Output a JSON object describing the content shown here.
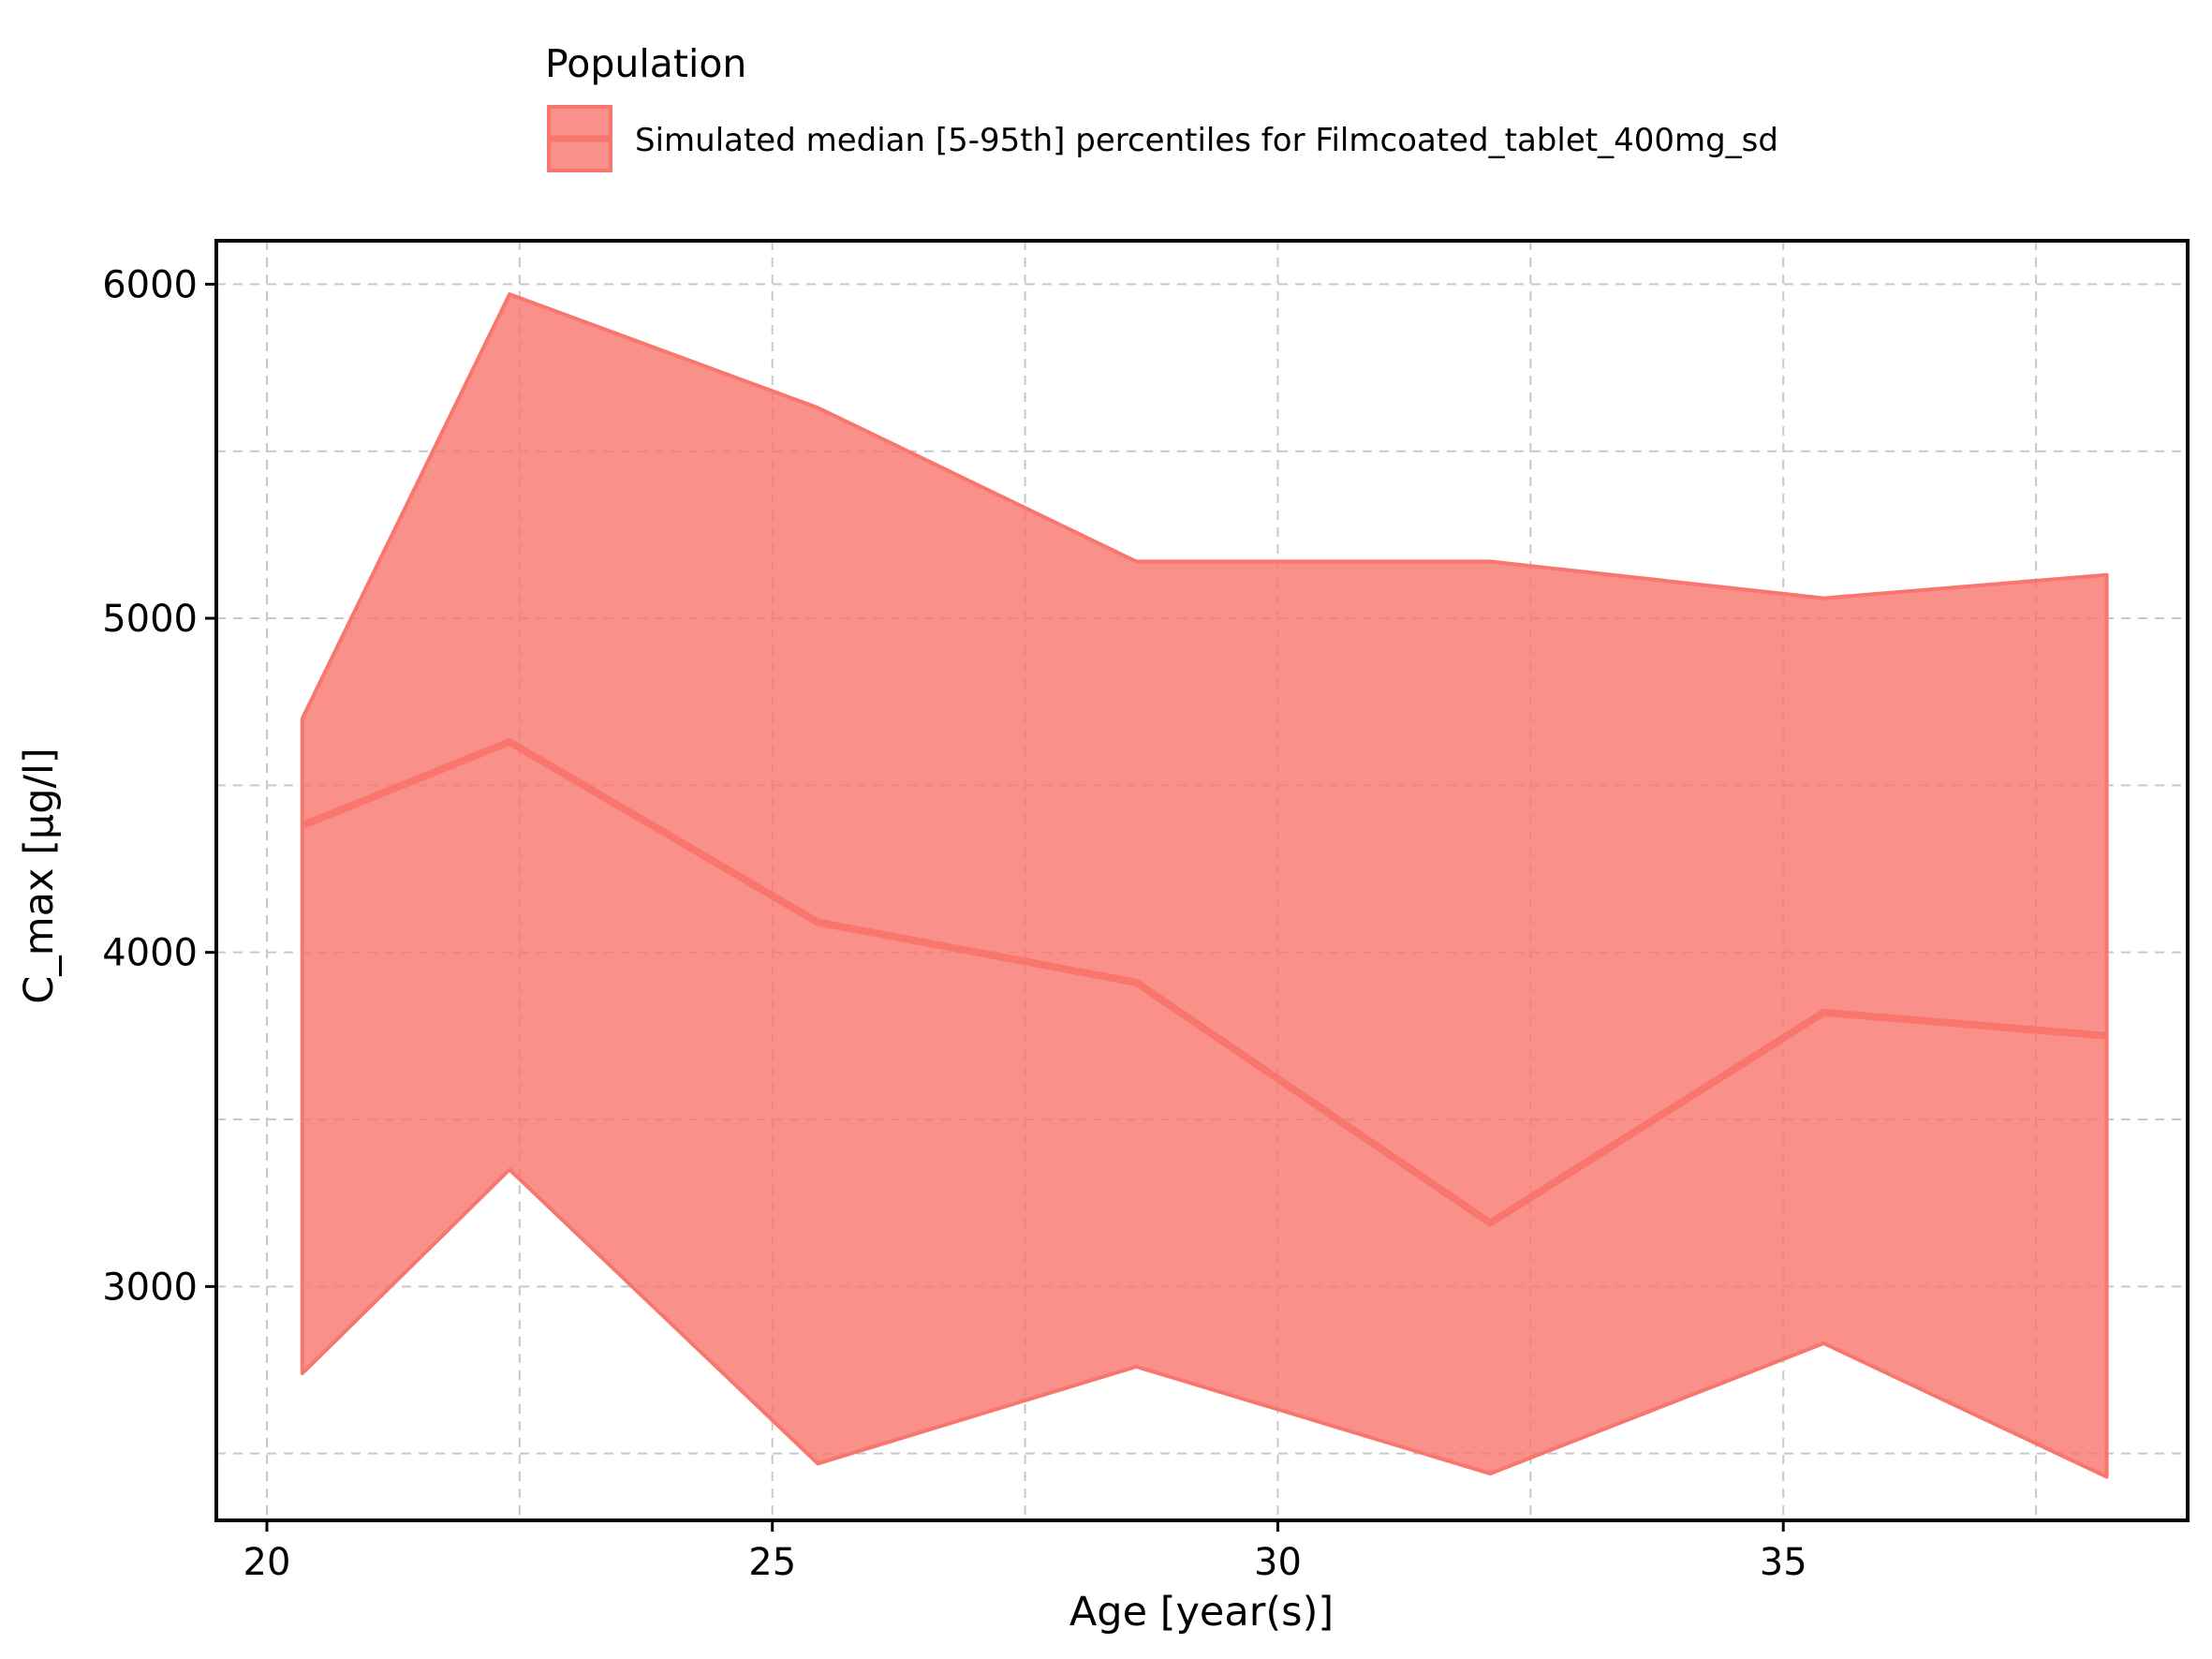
{
  "chart_data": {
    "type": "area",
    "title": "",
    "xlabel": "Age [year(s)]",
    "ylabel": "C_max [µg/l]",
    "xlim": [
      19.5,
      39.0
    ],
    "ylim": [
      2300,
      6130
    ],
    "xticks": [
      20,
      25,
      30,
      35
    ],
    "yticks": [
      3000,
      4000,
      5000,
      6000
    ],
    "x_minor_grid": [
      22.5,
      27.5,
      32.5,
      37.5
    ],
    "y_minor_grid": [
      2500,
      3500,
      4500,
      5500
    ],
    "grid": true,
    "legend": {
      "title": "Population",
      "placement": "top",
      "entries": [
        "Simulated median [5-95th] percentiles for Filmcoated_tablet_400mg_sd"
      ]
    },
    "x": [
      20.35,
      22.4,
      25.45,
      28.6,
      32.1,
      35.4,
      38.2
    ],
    "series": [
      {
        "name": "Simulated median [5-95th] percentiles for Filmcoated_tablet_400mg_sd",
        "median": [
          4380,
          4630,
          4090,
          3910,
          3190,
          3820,
          3750
        ],
        "lower": [
          2740,
          3350,
          2470,
          2760,
          2440,
          2830,
          2430
        ],
        "upper": [
          4700,
          5970,
          5630,
          5170,
          5170,
          5060,
          5130
        ],
        "color": "#F8766D",
        "fill_opacity": 0.8
      }
    ]
  }
}
